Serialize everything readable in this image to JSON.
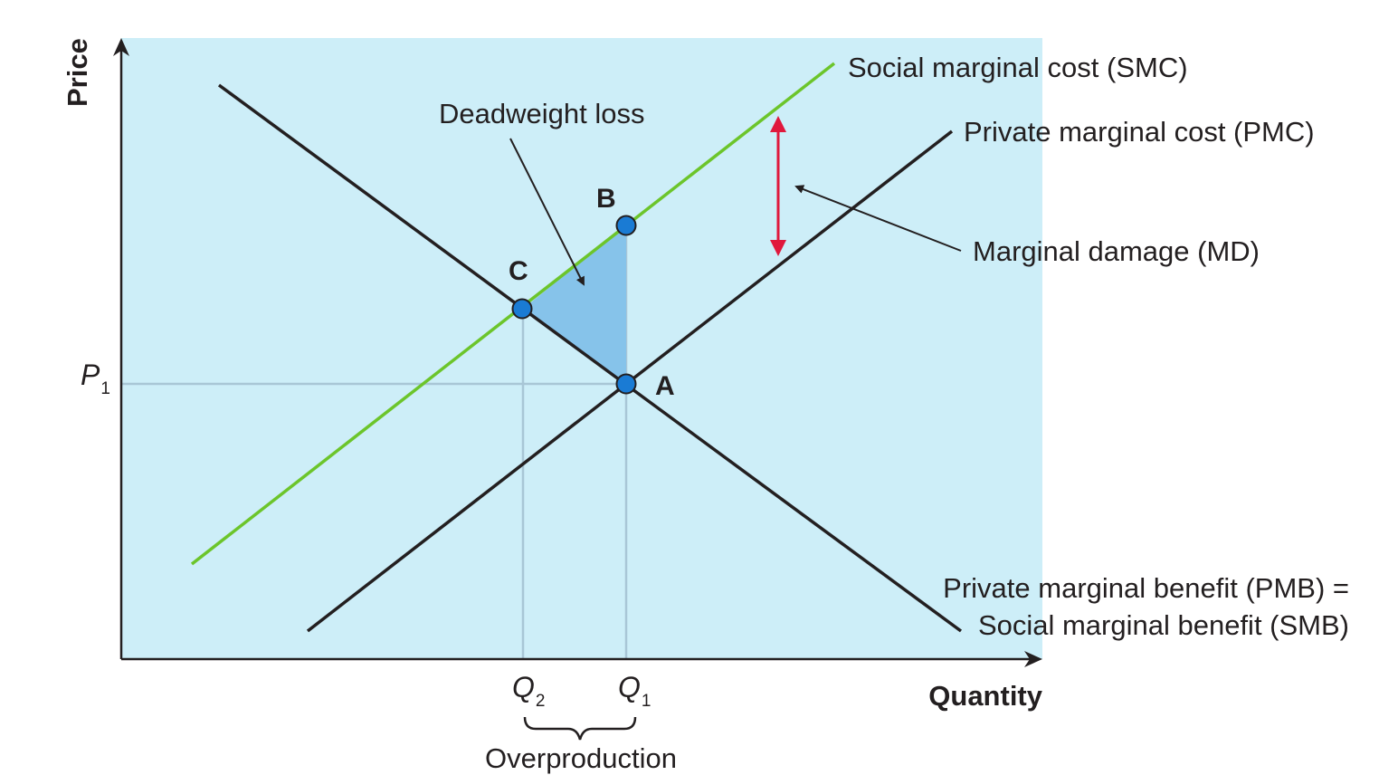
{
  "colors": {
    "plot_background": "#cdeef8",
    "smc_line": "#6cc52b",
    "curve_line": "#231f20",
    "deadweight_fill": "#86c3ea",
    "point_fill": "#1a7bd4",
    "md_arrow": "#e0183c",
    "guide_line": "#a8c6d6"
  },
  "axes": {
    "y_label": "Price",
    "x_label": "Quantity"
  },
  "curves": {
    "smc": "Social marginal cost (SMC)",
    "pmc": "Private marginal cost (PMC)",
    "pmb_line1": "Private marginal benefit (PMB) =",
    "pmb_line2": "Social marginal benefit (SMB)"
  },
  "annotations": {
    "deadweight_loss": "Deadweight loss",
    "marginal_damage": "Marginal damage (MD)",
    "overproduction": "Overproduction"
  },
  "points": {
    "a": "A",
    "b": "B",
    "c": "C"
  },
  "ticks": {
    "p1_letter": "P",
    "p1_sub": "1",
    "q1_letter": "Q",
    "q1_sub": "1",
    "q2_letter": "Q",
    "q2_sub": "2"
  },
  "icons": {
    "marginal_damage": "double-headed-arrow-icon",
    "pointer": "arrow-icon"
  }
}
